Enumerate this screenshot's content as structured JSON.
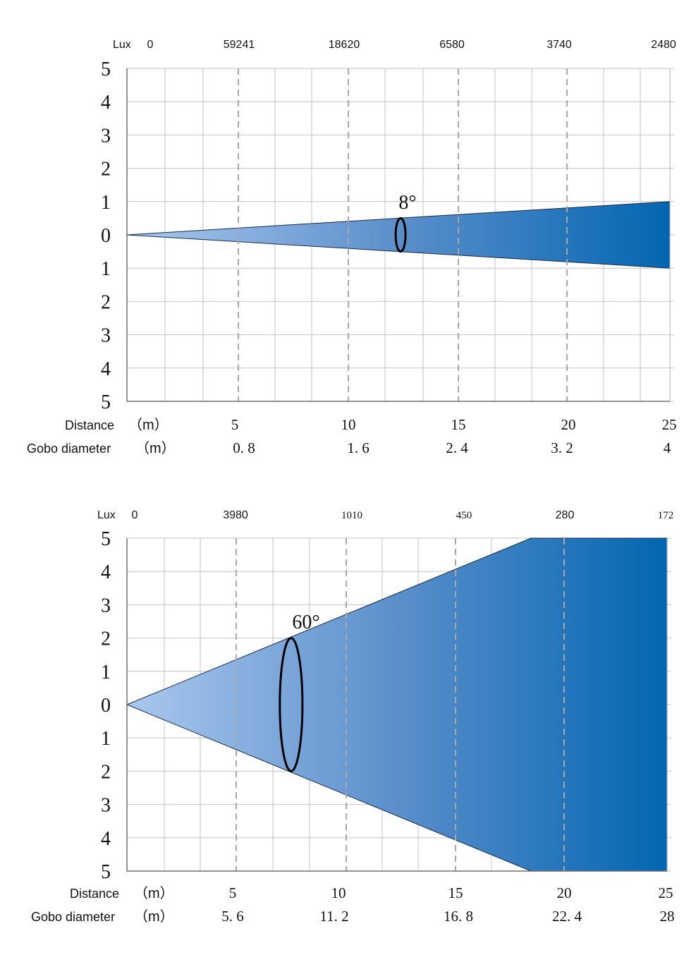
{
  "chart_data": [
    {
      "type": "area",
      "beam_angle_label": "8°",
      "lux_label": "Lux",
      "lux_values": [
        "0",
        "59241",
        "18620",
        "6580",
        "3740",
        "2480"
      ],
      "y_tick_labels": [
        "5",
        "4",
        "3",
        "2",
        "1",
        "0",
        "1",
        "2",
        "3",
        "4",
        "5"
      ],
      "ylim": [
        -5,
        5
      ],
      "xlim": [
        0,
        25
      ],
      "distance_label": "Distance",
      "distance_unit": "（m）",
      "distance_values": [
        "5",
        "10",
        "15",
        "20",
        "25"
      ],
      "gobo_label": "Gobo diameter",
      "gobo_unit": "（m）",
      "gobo_values": [
        "0. 8",
        "1. 6",
        "2. 4",
        "3. 2",
        "4"
      ],
      "beam": {
        "x": [
          0,
          25
        ],
        "half_width": [
          0,
          1
        ]
      },
      "gobo_marker": {
        "x": 12.6,
        "half_height": 0.5
      },
      "grid": true
    },
    {
      "type": "area",
      "beam_angle_label": "60°",
      "lux_label": "Lux",
      "lux_values": [
        "0",
        "3980",
        "1010",
        "450",
        "280",
        "172"
      ],
      "y_tick_labels": [
        "5",
        "4",
        "3",
        "2",
        "1",
        "0",
        "1",
        "2",
        "3",
        "4",
        "5"
      ],
      "ylim": [
        -5,
        5
      ],
      "xlim": [
        0,
        25
      ],
      "distance_label": "Distance",
      "distance_unit": "（m）",
      "distance_values": [
        "5",
        "10",
        "15",
        "20",
        "25"
      ],
      "gobo_label": "Gobo diameter",
      "gobo_unit": "（m）",
      "gobo_values": [
        "5. 6",
        "11. 2",
        "16. 8",
        "22. 4",
        "28"
      ],
      "beam": {
        "x": [
          0,
          18.7,
          25
        ],
        "half_width": [
          0,
          5,
          5
        ]
      },
      "gobo_marker": {
        "x": 7.6,
        "half_height": 2.0
      },
      "grid": true
    }
  ]
}
